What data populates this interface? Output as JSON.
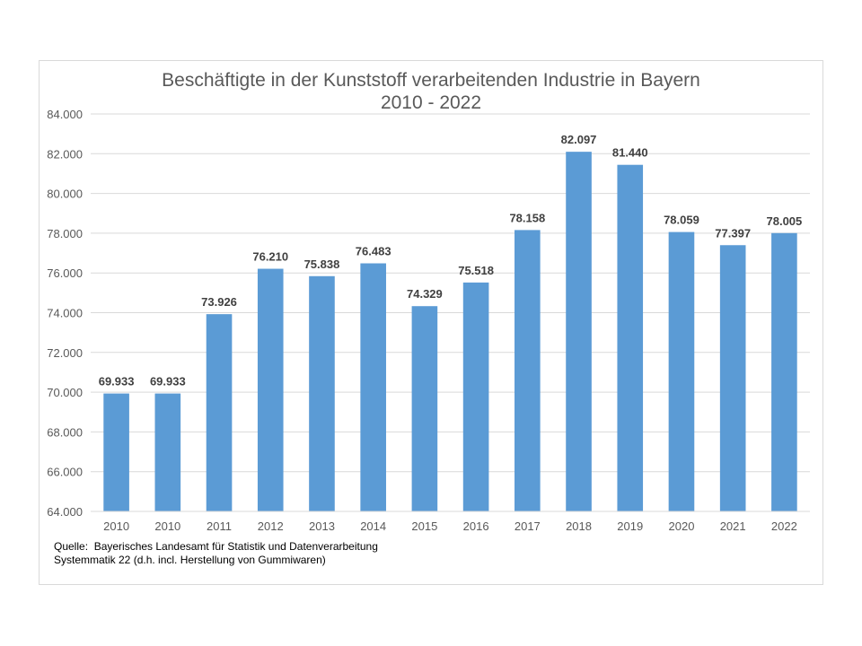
{
  "chart_data": {
    "type": "bar",
    "title": "Beschäftigte in der Kunststoff verarbeitenden Industrie in Bayern",
    "subtitle": "2010 - 2022",
    "xlabel": "",
    "ylabel": "",
    "categories": [
      "2010",
      "2010",
      "2011",
      "2012",
      "2013",
      "2014",
      "2015",
      "2016",
      "2017",
      "2018",
      "2019",
      "2020",
      "2021",
      "2022"
    ],
    "values": [
      69933,
      69933,
      73926,
      76210,
      75838,
      76483,
      74329,
      75518,
      78158,
      82097,
      81440,
      78059,
      77397,
      78005
    ],
    "data_labels": [
      "69.933",
      "69.933",
      "73.926",
      "76.210",
      "75.838",
      "76.483",
      "74.329",
      "75.518",
      "78.158",
      "82.097",
      "81.440",
      "78.059",
      "77.397",
      "78.005"
    ],
    "ylim": [
      64000,
      84000
    ],
    "y_ticks": [
      64000,
      66000,
      68000,
      70000,
      72000,
      74000,
      76000,
      78000,
      80000,
      82000,
      84000
    ],
    "y_tick_labels": [
      "64.000",
      "66.000",
      "68.000",
      "70.000",
      "72.000",
      "74.000",
      "76.000",
      "78.000",
      "80.000",
      "82.000",
      "84.000"
    ],
    "grid": true,
    "legend": "none",
    "bar_color": "#5b9bd5",
    "grid_color": "#d9d9d9"
  },
  "source": {
    "line1": "Quelle:  Bayerisches Landesamt für Statistik und Datenverarbeitung",
    "line2": "Systemmatik 22 (d.h. incl. Herstellung von Gummiwaren)"
  }
}
